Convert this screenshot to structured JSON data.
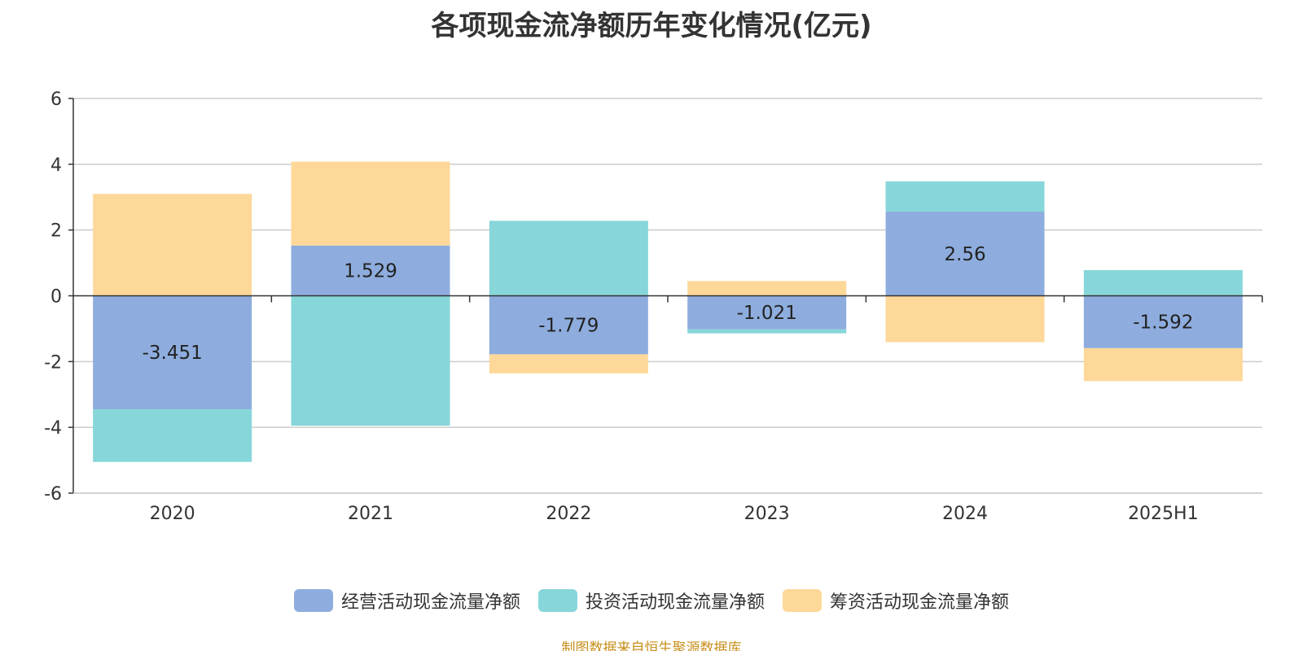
{
  "chart_data": {
    "type": "bar",
    "stacked": true,
    "title": "各项现金流净额历年变化情况(亿元)",
    "categories": [
      "2020",
      "2021",
      "2022",
      "2023",
      "2024",
      "2025H1"
    ],
    "series": [
      {
        "name": "经营活动现金流量净额",
        "color": "#8eadde",
        "values": [
          -3.451,
          1.529,
          -1.779,
          -1.021,
          2.56,
          -1.592
        ],
        "show_labels": true
      },
      {
        "name": "投资活动现金流量净额",
        "color": "#87d6d9",
        "values": [
          -1.6,
          -3.95,
          2.28,
          -0.12,
          0.92,
          0.78
        ],
        "show_labels": false
      },
      {
        "name": "筹资活动现金流量净额",
        "color": "#fdd899",
        "values": [
          3.1,
          2.55,
          -0.58,
          0.45,
          -1.41,
          -1.0
        ],
        "show_labels": false
      }
    ],
    "yticks": [
      6,
      4,
      2,
      0,
      -2,
      -4,
      -6
    ],
    "ylim": [
      -6,
      6
    ],
    "grid": true,
    "legend_position": "bottom"
  },
  "source_note": "制图数据来自恒生聚源数据库"
}
